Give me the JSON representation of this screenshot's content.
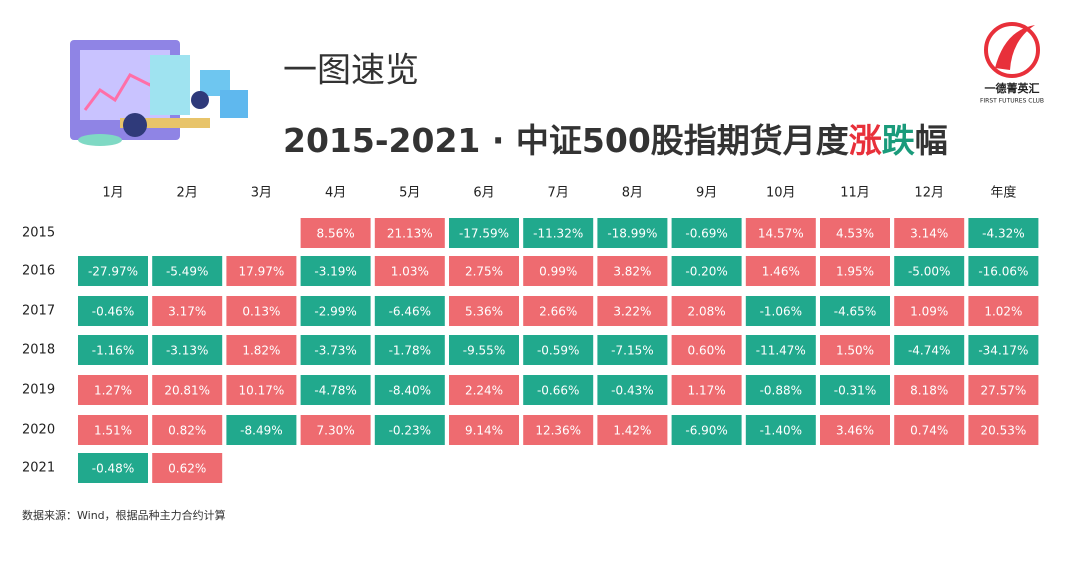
{
  "header": {
    "title": "一图速览",
    "subtitle_parts": [
      {
        "text": "2015-2021 · 中证500股指期货月度",
        "color": "#333333"
      },
      {
        "text": "涨",
        "color": "#e8303a"
      },
      {
        "text": "跌",
        "color": "#1a9b7b"
      },
      {
        "text": "幅",
        "color": "#333333"
      }
    ]
  },
  "logo": {
    "name": "一德菁英汇",
    "sub": "FIRST FUTURES CLUB"
  },
  "table": {
    "up_color": "#ee6b70",
    "down_color": "#21a98d",
    "columns": [
      "1月",
      "2月",
      "3月",
      "4月",
      "5月",
      "6月",
      "7月",
      "8月",
      "9月",
      "10月",
      "11月",
      "12月",
      "年度"
    ],
    "rows": [
      {
        "year": "2015",
        "cells": [
          null,
          null,
          null,
          "8.56%",
          "21.13%",
          "-17.59%",
          "-11.32%",
          "-18.99%",
          "-0.69%",
          "14.57%",
          "4.53%",
          "3.14%",
          "-4.32%"
        ]
      },
      {
        "year": "2016",
        "cells": [
          "-27.97%",
          "-5.49%",
          "17.97%",
          "-3.19%",
          "1.03%",
          "2.75%",
          "0.99%",
          "3.82%",
          "-0.20%",
          "1.46%",
          "1.95%",
          "-5.00%",
          "-16.06%"
        ]
      },
      {
        "year": "2017",
        "cells": [
          "-0.46%",
          "3.17%",
          "0.13%",
          "-2.99%",
          "-6.46%",
          "5.36%",
          "2.66%",
          "3.22%",
          "2.08%",
          "-1.06%",
          "-4.65%",
          "1.09%",
          "1.02%"
        ]
      },
      {
        "year": "2018",
        "cells": [
          "-1.16%",
          "-3.13%",
          "1.82%",
          "-3.73%",
          "-1.78%",
          "-9.55%",
          "-0.59%",
          "-7.15%",
          "0.60%",
          "-11.47%",
          "1.50%",
          "-4.74%",
          "-34.17%"
        ]
      },
      {
        "year": "2019",
        "cells": [
          "1.27%",
          "20.81%",
          "10.17%",
          "-4.78%",
          "-8.40%",
          "2.24%",
          "-0.66%",
          "-0.43%",
          "1.17%",
          "-0.88%",
          "-0.31%",
          "8.18%",
          "27.57%"
        ]
      },
      {
        "year": "2020",
        "cells": [
          "1.51%",
          "0.82%",
          "-8.49%",
          "7.30%",
          "-0.23%",
          "9.14%",
          "12.36%",
          "1.42%",
          "-6.90%",
          "-1.40%",
          "3.46%",
          "0.74%",
          "20.53%"
        ]
      },
      {
        "year": "2021",
        "cells": [
          "-0.48%",
          "0.62%",
          null,
          null,
          null,
          null,
          null,
          null,
          null,
          null,
          null,
          null,
          null
        ]
      }
    ]
  },
  "footnote": "数据来源：Wind，根据品种主力合约计算"
}
